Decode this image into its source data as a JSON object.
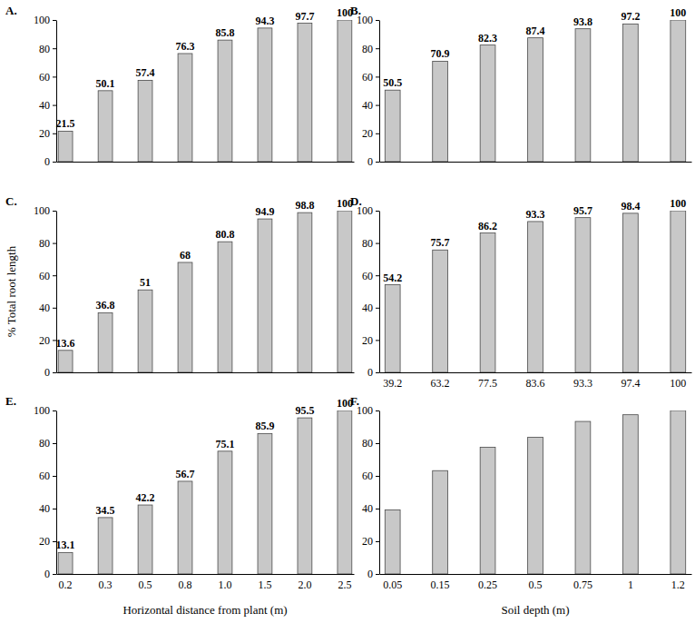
{
  "chart_data": [
    {
      "type": "bar",
      "title": "A.",
      "categories": [
        null,
        null,
        null,
        null,
        null,
        null,
        null,
        null
      ],
      "values": [
        21.5,
        50.1,
        57.4,
        76.3,
        85.8,
        94.3,
        97.7,
        100
      ],
      "color": "#c8c8c8",
      "ylim": [
        0,
        100
      ],
      "yticks": [
        0,
        20,
        40,
        60,
        80,
        100
      ],
      "data_labels": true
    },
    {
      "type": "bar",
      "title": "B.",
      "categories": [
        null,
        null,
        null,
        null,
        null,
        null,
        null
      ],
      "values": [
        50.5,
        70.9,
        82.3,
        87.4,
        93.8,
        97.2,
        100
      ],
      "color": "#c8c8c8",
      "ylim": [
        0,
        100
      ],
      "yticks": [
        0,
        20,
        40,
        60,
        80,
        100
      ],
      "data_labels": true
    },
    {
      "type": "bar",
      "title": "C.",
      "ylabel": "% Total root length",
      "categories": [
        null,
        null,
        null,
        null,
        null,
        null,
        null,
        null
      ],
      "values": [
        13.6,
        36.8,
        51,
        68,
        80.8,
        94.9,
        98.8,
        100
      ],
      "color": "#c8c8c8",
      "ylim": [
        0,
        100
      ],
      "yticks": [
        0,
        20,
        40,
        60,
        80,
        100
      ],
      "data_labels": true
    },
    {
      "type": "bar",
      "title": "D.",
      "categories": [
        "39.2",
        "63.2",
        "77.5",
        "83.6",
        "93.3",
        "97.4",
        "100"
      ],
      "values": [
        54.2,
        75.7,
        86.2,
        93.3,
        95.7,
        98.4,
        100
      ],
      "color": "#c8c8c8",
      "ylim": [
        0,
        100
      ],
      "yticks": [
        0,
        20,
        40,
        60,
        80,
        100
      ],
      "data_labels": true
    },
    {
      "type": "bar",
      "title": "E.",
      "xlabel": "Horizontal distance from plant (m)",
      "categories": [
        "0.2",
        "0.3",
        "0.5",
        "0.8",
        "1.0",
        "1.5",
        "2.0",
        "2.5"
      ],
      "values": [
        13.1,
        34.5,
        42.2,
        56.7,
        75.1,
        85.9,
        95.5,
        100
      ],
      "color": "#c8c8c8",
      "ylim": [
        0,
        100
      ],
      "yticks": [
        0,
        20,
        40,
        60,
        80,
        100
      ],
      "data_labels": true
    },
    {
      "type": "bar",
      "title": "F.",
      "xlabel": "Soil depth (m)",
      "categories": [
        "0.05",
        "0.15",
        "0.25",
        "0.5",
        "0.75",
        "1",
        "1.2"
      ],
      "values": [
        39.2,
        63.2,
        77.5,
        83.6,
        93.3,
        97.4,
        100
      ],
      "color": "#c8c8c8",
      "ylim": [
        0,
        100
      ],
      "yticks": [
        0,
        20,
        40,
        60,
        80,
        100
      ],
      "data_labels": false
    }
  ]
}
